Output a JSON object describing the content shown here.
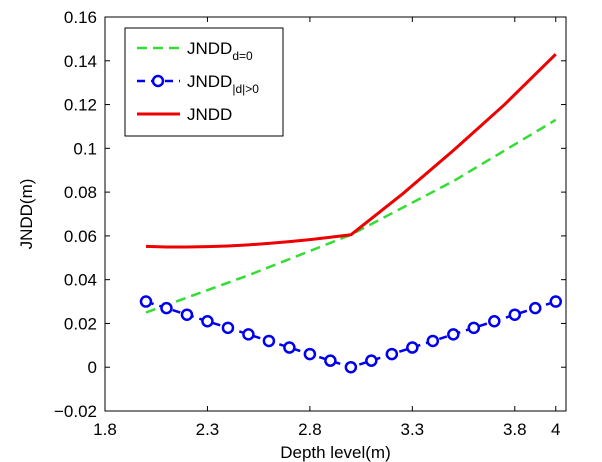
{
  "chart_data": {
    "type": "line",
    "xlabel": "Depth level(m)",
    "ylabel": "JNDD(m)",
    "xlim": [
      1.8,
      4.05
    ],
    "ylim": [
      -0.02,
      0.16
    ],
    "xticks": [
      1.8,
      2.3,
      2.8,
      3.3,
      3.8,
      4
    ],
    "xtick_labels": [
      "1.8",
      "2.3",
      "2.8",
      "3.3",
      "3.8",
      "4"
    ],
    "yticks": [
      -0.02,
      0,
      0.02,
      0.04,
      0.06,
      0.08,
      0.1,
      0.12,
      0.14,
      0.16
    ],
    "ytick_labels": [
      "−0.02",
      "0",
      "0.02",
      "0.04",
      "0.06",
      "0.08",
      "0.1",
      "0.12",
      "0.14",
      "0.16"
    ],
    "legend_position": "top-left",
    "grid": false,
    "series": [
      {
        "name": "JNDD",
        "name_sub": "d=0",
        "color": "#33dd33",
        "style": "dashed",
        "x": [
          2.0,
          2.5,
          3.0,
          3.5,
          4.0
        ],
        "y": [
          0.025,
          0.042,
          0.0605,
          0.085,
          0.113
        ]
      },
      {
        "name": "JNDD",
        "name_sub": "|d|>0",
        "color": "#0000ee",
        "style": "dashed-circle",
        "x": [
          2.0,
          2.1,
          2.2,
          2.3,
          2.4,
          2.5,
          2.6,
          2.7,
          2.8,
          2.9,
          3.0,
          3.1,
          3.2,
          3.3,
          3.4,
          3.5,
          3.6,
          3.7,
          3.8,
          3.9,
          4.0
        ],
        "y": [
          0.03,
          0.027,
          0.024,
          0.021,
          0.018,
          0.015,
          0.012,
          0.009,
          0.006,
          0.003,
          0.0,
          0.003,
          0.006,
          0.009,
          0.012,
          0.015,
          0.018,
          0.021,
          0.024,
          0.027,
          0.03
        ]
      },
      {
        "name": "JNDD",
        "name_sub": "",
        "color": "#ee0000",
        "style": "solid",
        "x": [
          2.0,
          2.1,
          2.2,
          2.3,
          2.4,
          2.5,
          2.6,
          2.7,
          2.8,
          2.9,
          3.0,
          3.25,
          3.5,
          3.75,
          4.0
        ],
        "y": [
          0.0552,
          0.0549,
          0.0549,
          0.0551,
          0.0554,
          0.0559,
          0.0566,
          0.0574,
          0.0583,
          0.0594,
          0.0605,
          0.079,
          0.099,
          0.12,
          0.143
        ]
      }
    ]
  }
}
